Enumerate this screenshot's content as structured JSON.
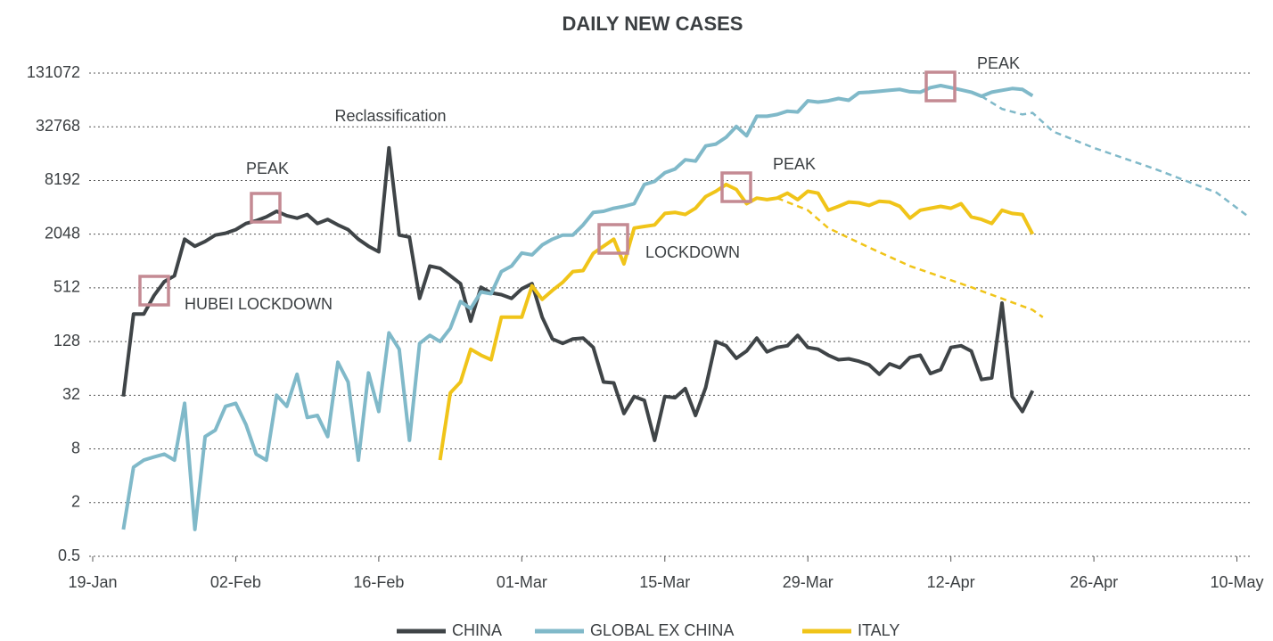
{
  "chart_data": {
    "type": "line",
    "title": "DAILY NEW CASES",
    "log": true,
    "grid": true,
    "legend": "bottom",
    "xlim": [
      0,
      113
    ],
    "xticks": [
      {
        "value": 0,
        "label": "19-Jan"
      },
      {
        "value": 14,
        "label": "02-Feb"
      },
      {
        "value": 28,
        "label": "16-Feb"
      },
      {
        "value": 42,
        "label": "01-Mar"
      },
      {
        "value": 56,
        "label": "15-Mar"
      },
      {
        "value": 70,
        "label": "29-Mar"
      },
      {
        "value": 84,
        "label": "12-Apr"
      },
      {
        "value": 98,
        "label": "26-Apr"
      },
      {
        "value": 112,
        "label": "10-May"
      }
    ],
    "ylim": [
      0.5,
      131072
    ],
    "yticks": [
      0.5,
      2,
      8,
      32,
      128,
      512,
      2048,
      8192,
      32768,
      131072
    ],
    "annotations": [
      "Reclassification",
      "PEAK",
      "HUBEI LOCKDOWN",
      "LOCKDOWN",
      "PEAK",
      "PEAK"
    ],
    "series": [
      {
        "name": "CHINA",
        "color": "#3f4447",
        "x": [
          3,
          4,
          5,
          6,
          7,
          8,
          9,
          10,
          11,
          12,
          13,
          14,
          15,
          16,
          17,
          18,
          19,
          20,
          21,
          22,
          23,
          24,
          25,
          26,
          27,
          28,
          29,
          30,
          31,
          32,
          33,
          34,
          35,
          36,
          37,
          38,
          39,
          40,
          41,
          42,
          43,
          44,
          45,
          46,
          47,
          48,
          49,
          50,
          51,
          52,
          53,
          54,
          55,
          56,
          57,
          58,
          59,
          60,
          61,
          62,
          63,
          64,
          65,
          66,
          67,
          68,
          69,
          70,
          71,
          72,
          73,
          74,
          75,
          76,
          77,
          78,
          79,
          80,
          81,
          82,
          83,
          84,
          85,
          86,
          87,
          88,
          89,
          90,
          91,
          92
        ],
        "values": [
          31,
          260,
          260,
          420,
          600,
          700,
          1800,
          1500,
          1700,
          2000,
          2100,
          2300,
          2700,
          2900,
          3200,
          3700,
          3300,
          3100,
          3400,
          2700,
          3000,
          2600,
          2300,
          1800,
          1500,
          1300,
          19000,
          2000,
          1900,
          390,
          900,
          850,
          700,
          570,
          217,
          520,
          450,
          430,
          390,
          500,
          570,
          240,
          137,
          122,
          137,
          140,
          110,
          45,
          44,
          20,
          31,
          28,
          10,
          31,
          30,
          38,
          19,
          39,
          128,
          115,
          83,
          100,
          140,
          98,
          110,
          115,
          150,
          110,
          105,
          90,
          80,
          82,
          77,
          70,
          55,
          72,
          65,
          85,
          90,
          56,
          62,
          110,
          115,
          100,
          48,
          50,
          345,
          31,
          21,
          36
        ]
      },
      {
        "name": "GLOBAL EX CHINA",
        "color": "#80b9c9",
        "x": [
          3,
          4,
          5,
          6,
          7,
          8,
          9,
          10,
          11,
          12,
          13,
          14,
          15,
          16,
          17,
          18,
          19,
          20,
          21,
          22,
          23,
          24,
          25,
          26,
          27,
          28,
          29,
          30,
          31,
          32,
          33,
          34,
          35,
          36,
          37,
          38,
          39,
          40,
          41,
          42,
          43,
          44,
          45,
          46,
          47,
          48,
          49,
          50,
          51,
          52,
          53,
          54,
          55,
          56,
          57,
          58,
          59,
          60,
          61,
          62,
          63,
          64,
          65,
          66,
          67,
          68,
          69,
          70,
          71,
          72,
          73,
          74,
          75,
          76,
          77,
          78,
          79,
          80,
          81,
          82,
          83,
          84,
          85,
          86,
          87,
          88,
          89,
          90,
          91,
          92
        ],
        "values": [
          1,
          5,
          6,
          6.5,
          7,
          6,
          26,
          1,
          11,
          13,
          24,
          26,
          15,
          7,
          6,
          32,
          24,
          55,
          18,
          19,
          11,
          75,
          45,
          6,
          57,
          21,
          160,
          105,
          10,
          122,
          150,
          128,
          180,
          360,
          300,
          460,
          440,
          780,
          900,
          1260,
          1200,
          1550,
          1800,
          2000,
          2000,
          2600,
          3600,
          3700,
          4000,
          4200,
          4500,
          7400,
          8000,
          10000,
          11000,
          14000,
          13500,
          20000,
          21000,
          25000,
          33000,
          26000,
          43000,
          43000,
          45000,
          49000,
          48000,
          64000,
          62000,
          64000,
          68000,
          65000,
          79000,
          80000,
          82000,
          84000,
          86000,
          81000,
          80000,
          90000,
          95000,
          90000,
          85000,
          80000,
          72000,
          80000,
          84000,
          88000,
          86000,
          73000
        ],
        "projection": {
          "x": [
            87,
            89,
            91,
            92,
            94,
            98,
            104,
            110,
            113
          ],
          "values": [
            72000,
            52000,
            45000,
            47000,
            29000,
            19000,
            11000,
            6000,
            3300
          ]
        }
      },
      {
        "name": "ITALY",
        "color": "#f0c419",
        "x": [
          34,
          35,
          36,
          37,
          38,
          39,
          40,
          41,
          42,
          43,
          44,
          45,
          46,
          47,
          48,
          49,
          50,
          51,
          52,
          53,
          54,
          55,
          56,
          57,
          58,
          59,
          60,
          61,
          62,
          63,
          64,
          65,
          66,
          67,
          68,
          69,
          70,
          71,
          72,
          73,
          74,
          75,
          76,
          77,
          78,
          79,
          80,
          81,
          82,
          83,
          84,
          85,
          86,
          87,
          88,
          89,
          90,
          91,
          92
        ],
        "values": [
          6,
          34,
          45,
          105,
          90,
          80,
          240,
          240,
          240,
          540,
          380,
          480,
          590,
          780,
          800,
          1250,
          1500,
          1800,
          950,
          2400,
          2500,
          2600,
          3500,
          3600,
          3400,
          4000,
          5400,
          6200,
          7400,
          6500,
          4500,
          5200,
          5000,
          5200,
          5900,
          5000,
          6200,
          5900,
          3800,
          4200,
          4700,
          4600,
          4300,
          4800,
          4700,
          4200,
          3100,
          3800,
          4000,
          4200,
          4000,
          4500,
          3200,
          3000,
          2700,
          3800,
          3500,
          3400,
          2050
        ],
        "projection": {
          "x": [
            67,
            70,
            72,
            76,
            80,
            86,
            92,
            93
          ],
          "values": [
            5200,
            3800,
            2400,
            1450,
            900,
            520,
            290,
            240
          ]
        }
      }
    ]
  }
}
